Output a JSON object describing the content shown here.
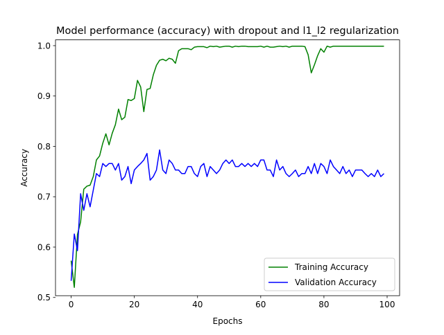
{
  "chart_data": {
    "type": "line",
    "title": "Model performance (accuracy) with dropout and l1_l2 regularization",
    "xlabel": "Epochs",
    "ylabel": "Accuracy",
    "xlim": [
      -4.95,
      103.95
    ],
    "ylim": [
      0.5035,
      1.0115
    ],
    "xticks": [
      0,
      20,
      40,
      60,
      80,
      100
    ],
    "xtick_labels": [
      "0",
      "20",
      "40",
      "60",
      "80",
      "100"
    ],
    "yticks": [
      0.5,
      0.6,
      0.7,
      0.8,
      0.9,
      1.0
    ],
    "ytick_labels": [
      "0.5",
      "0.6",
      "0.7",
      "0.8",
      "0.9",
      "1.0"
    ],
    "grid": false,
    "legend_position": "lower right",
    "series": [
      {
        "name": "Training Accuracy",
        "color": "#008000",
        "x": [
          0,
          1,
          2,
          3,
          4,
          5,
          6,
          7,
          8,
          9,
          10,
          11,
          12,
          13,
          14,
          15,
          16,
          17,
          18,
          19,
          20,
          21,
          22,
          23,
          24,
          25,
          26,
          27,
          28,
          29,
          30,
          31,
          32,
          33,
          34,
          35,
          36,
          37,
          38,
          39,
          40,
          41,
          42,
          43,
          44,
          45,
          46,
          47,
          48,
          49,
          50,
          51,
          52,
          53,
          54,
          55,
          56,
          57,
          58,
          59,
          60,
          61,
          62,
          63,
          64,
          65,
          66,
          67,
          68,
          69,
          70,
          71,
          72,
          73,
          74,
          75,
          76,
          77,
          78,
          79,
          80,
          81,
          82,
          83,
          84,
          85,
          86,
          87,
          88,
          89,
          90,
          91,
          92,
          93,
          94,
          95,
          96,
          97,
          98,
          99
        ],
        "values": [
          0.573,
          0.52,
          0.625,
          0.65,
          0.715,
          0.721,
          0.723,
          0.74,
          0.773,
          0.781,
          0.806,
          0.825,
          0.803,
          0.826,
          0.843,
          0.874,
          0.853,
          0.858,
          0.893,
          0.891,
          0.895,
          0.931,
          0.918,
          0.869,
          0.913,
          0.915,
          0.942,
          0.961,
          0.971,
          0.973,
          0.97,
          0.975,
          0.973,
          0.965,
          0.99,
          0.994,
          0.994,
          0.994,
          0.992,
          0.997,
          0.998,
          0.998,
          0.998,
          0.996,
          0.999,
          0.998,
          0.999,
          0.997,
          0.998,
          0.999,
          0.999,
          0.997,
          0.999,
          0.998,
          0.999,
          0.999,
          0.998,
          0.998,
          0.998,
          0.998,
          0.999,
          0.997,
          0.999,
          0.997,
          0.997,
          0.998,
          0.999,
          0.998,
          0.999,
          0.997,
          0.999,
          0.999,
          0.999,
          0.999,
          0.998,
          0.982,
          0.946,
          0.962,
          0.98,
          0.994,
          0.987,
          0.999,
          0.997,
          0.999,
          0.999,
          0.999,
          0.999,
          0.999,
          0.999,
          0.999,
          0.999,
          0.999,
          0.999,
          0.999,
          0.999,
          0.999,
          0.999,
          0.999,
          0.999,
          0.999
        ]
      },
      {
        "name": "Validation Accuracy",
        "color": "#0000ff",
        "x": [
          0,
          1,
          2,
          3,
          4,
          5,
          6,
          7,
          8,
          9,
          10,
          11,
          12,
          13,
          14,
          15,
          16,
          17,
          18,
          19,
          20,
          21,
          22,
          23,
          24,
          25,
          26,
          27,
          28,
          29,
          30,
          31,
          32,
          33,
          34,
          35,
          36,
          37,
          38,
          39,
          40,
          41,
          42,
          43,
          44,
          45,
          46,
          47,
          48,
          49,
          50,
          51,
          52,
          53,
          54,
          55,
          56,
          57,
          58,
          59,
          60,
          61,
          62,
          63,
          64,
          65,
          66,
          67,
          68,
          69,
          70,
          71,
          72,
          73,
          74,
          75,
          76,
          77,
          78,
          79,
          80,
          81,
          82,
          83,
          84,
          85,
          86,
          87,
          88,
          89,
          90,
          91,
          92,
          93,
          94,
          95,
          96,
          97,
          98,
          99
        ],
        "values": [
          0.533,
          0.626,
          0.593,
          0.706,
          0.673,
          0.706,
          0.68,
          0.713,
          0.746,
          0.74,
          0.766,
          0.76,
          0.766,
          0.766,
          0.753,
          0.766,
          0.733,
          0.74,
          0.76,
          0.726,
          0.753,
          0.76,
          0.766,
          0.773,
          0.786,
          0.733,
          0.74,
          0.753,
          0.793,
          0.753,
          0.746,
          0.773,
          0.766,
          0.753,
          0.753,
          0.746,
          0.746,
          0.76,
          0.76,
          0.746,
          0.74,
          0.76,
          0.766,
          0.74,
          0.76,
          0.753,
          0.746,
          0.753,
          0.766,
          0.773,
          0.766,
          0.773,
          0.76,
          0.76,
          0.766,
          0.76,
          0.766,
          0.76,
          0.766,
          0.76,
          0.773,
          0.773,
          0.753,
          0.753,
          0.74,
          0.773,
          0.753,
          0.76,
          0.746,
          0.74,
          0.746,
          0.753,
          0.74,
          0.746,
          0.746,
          0.76,
          0.746,
          0.766,
          0.746,
          0.766,
          0.76,
          0.746,
          0.773,
          0.76,
          0.753,
          0.746,
          0.76,
          0.746,
          0.753,
          0.74,
          0.753,
          0.753,
          0.753,
          0.746,
          0.74,
          0.746,
          0.74,
          0.753,
          0.74,
          0.746
        ]
      }
    ]
  }
}
